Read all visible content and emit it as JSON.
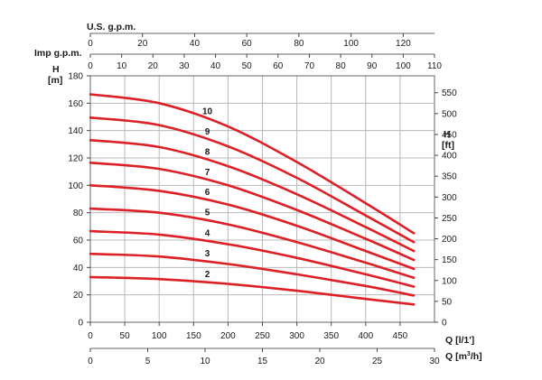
{
  "chart_data": {
    "type": "line",
    "title": "",
    "colors": {
      "curve": "#dd1f26",
      "grid": "#b9b9b9",
      "frame": "#666666"
    },
    "axes": {
      "left": {
        "label_line1": "H",
        "label_line2": "[m]",
        "range": [
          0,
          180
        ],
        "ticks": [
          "0",
          "20",
          "40",
          "60",
          "80",
          "100",
          "120",
          "140",
          "160",
          "180"
        ]
      },
      "right": {
        "label_line1": "H",
        "label_line2": "[ft]",
        "range": [
          0,
          590.55
        ],
        "ticks": [
          "0",
          "50",
          "100",
          "150",
          "200",
          "250",
          "300",
          "350",
          "400",
          "450",
          "500",
          "550"
        ]
      },
      "bottom_main": {
        "label": "Q [l/1']",
        "range": [
          0,
          500
        ],
        "ticks": [
          "0",
          "50",
          "100",
          "150",
          "200",
          "250",
          "300",
          "350",
          "400",
          "450"
        ]
      },
      "bottom_secondary": {
        "label_prefix": "Q [m",
        "label_sup": "3",
        "label_suffix": "/h]",
        "range": [
          0,
          30
        ],
        "ticks": [
          "0",
          "5",
          "10",
          "15",
          "20",
          "25",
          "30"
        ]
      },
      "top_imp": {
        "label": "Imp g.p.m.",
        "range": [
          0,
          110
        ],
        "ticks": [
          "0",
          "10",
          "20",
          "30",
          "40",
          "50",
          "60",
          "70",
          "80",
          "90",
          "100",
          "110"
        ]
      },
      "top_us": {
        "label": "U.S. g.p.m.",
        "range": [
          0,
          132
        ],
        "ticks": [
          "0",
          "20",
          "40",
          "60",
          "80",
          "100",
          "120"
        ]
      }
    },
    "series": [
      {
        "name": "2",
        "x": [
          0,
          100,
          200,
          300,
          400,
          470
        ],
        "y": [
          33,
          31.5,
          28,
          23,
          17,
          13
        ]
      },
      {
        "name": "3",
        "x": [
          0,
          100,
          200,
          300,
          400,
          470
        ],
        "y": [
          50,
          48,
          42.5,
          35,
          26.5,
          19.5
        ]
      },
      {
        "name": "4",
        "x": [
          0,
          100,
          200,
          300,
          400,
          470
        ],
        "y": [
          66.5,
          64,
          57,
          47,
          35,
          26
        ]
      },
      {
        "name": "5",
        "x": [
          0,
          100,
          200,
          300,
          400,
          470
        ],
        "y": [
          83,
          80,
          71.5,
          58.5,
          43.5,
          32.5
        ]
      },
      {
        "name": "6",
        "x": [
          0,
          100,
          200,
          300,
          400,
          470
        ],
        "y": [
          100,
          96,
          86,
          70.5,
          52,
          39
        ]
      },
      {
        "name": "7",
        "x": [
          0,
          100,
          200,
          300,
          400,
          470
        ],
        "y": [
          116.5,
          112,
          100,
          82,
          61,
          45.5
        ]
      },
      {
        "name": "8",
        "x": [
          0,
          100,
          200,
          300,
          400,
          470
        ],
        "y": [
          133,
          128,
          114,
          93.5,
          69.5,
          52
        ]
      },
      {
        "name": "9",
        "x": [
          0,
          100,
          200,
          300,
          400,
          470
        ],
        "y": [
          149.5,
          144,
          128.5,
          105.5,
          78,
          58.5
        ]
      },
      {
        "name": "10",
        "x": [
          0,
          100,
          200,
          300,
          400,
          470
        ],
        "y": [
          166.5,
          160,
          143,
          117,
          87,
          65
        ]
      }
    ]
  }
}
